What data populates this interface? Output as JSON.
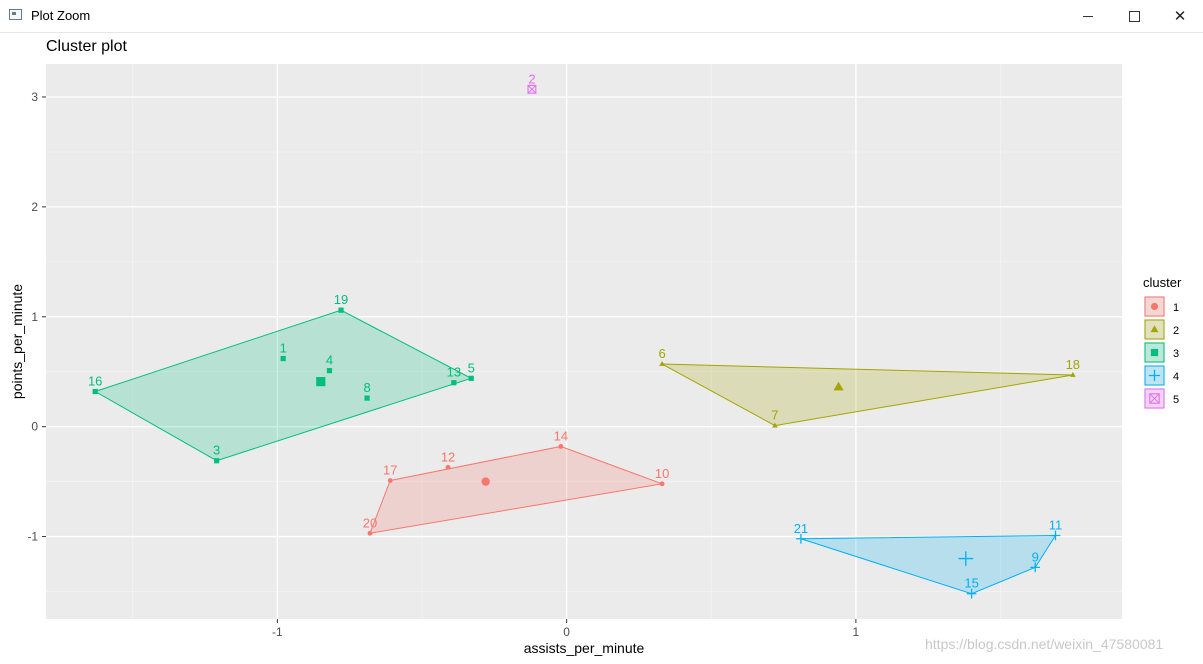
{
  "window": {
    "title": "Plot Zoom",
    "minimize_glyph": "minimize-icon",
    "maximize_glyph": "maximize-icon",
    "close_glyph": "✕"
  },
  "watermark": "https://blog.csdn.net/weixin_47580081",
  "chart_data": {
    "type": "scatter",
    "title": "Cluster plot",
    "xlabel": "assists_per_minute",
    "ylabel": "points_per_minute",
    "xlim": [
      -1.8,
      1.92
    ],
    "ylim": [
      -1.75,
      3.3
    ],
    "xticks": [
      -1,
      0,
      1
    ],
    "yticks": [
      -1,
      0,
      1,
      2,
      3
    ],
    "xtick_labels": [
      "-1",
      "0",
      "1"
    ],
    "ytick_labels": [
      "-1",
      "0",
      "1",
      "2",
      "3"
    ],
    "grid": true,
    "legend_title": "cluster",
    "legend_position": "right",
    "clusters": [
      {
        "id": "1",
        "color": "#F8766D",
        "shape": "circle",
        "center": [
          -0.28,
          -0.5
        ],
        "hull": [
          "17",
          "14",
          "10",
          "20"
        ],
        "points": [
          {
            "label": "17",
            "x": -0.61,
            "y": -0.49
          },
          {
            "label": "12",
            "x": -0.41,
            "y": -0.37
          },
          {
            "label": "14",
            "x": -0.02,
            "y": -0.18
          },
          {
            "label": "10",
            "x": 0.33,
            "y": -0.52
          },
          {
            "label": "20",
            "x": -0.68,
            "y": -0.97
          }
        ]
      },
      {
        "id": "2",
        "color": "#A3A500",
        "shape": "triangle",
        "center": [
          0.94,
          0.36
        ],
        "hull": [
          "6",
          "18",
          "7"
        ],
        "points": [
          {
            "label": "6",
            "x": 0.33,
            "y": 0.57
          },
          {
            "label": "18",
            "x": 1.75,
            "y": 0.47
          },
          {
            "label": "7",
            "x": 0.72,
            "y": 0.01
          }
        ]
      },
      {
        "id": "3",
        "color": "#00BF7D",
        "shape": "square",
        "center": [
          -0.85,
          0.41
        ],
        "hull": [
          "16",
          "19",
          "5",
          "3"
        ],
        "points": [
          {
            "label": "19",
            "x": -0.78,
            "y": 1.06
          },
          {
            "label": "1",
            "x": -0.98,
            "y": 0.62
          },
          {
            "label": "4",
            "x": -0.82,
            "y": 0.51
          },
          {
            "label": "8",
            "x": -0.69,
            "y": 0.26
          },
          {
            "label": "13",
            "x": -0.39,
            "y": 0.4
          },
          {
            "label": "5",
            "x": -0.33,
            "y": 0.44
          },
          {
            "label": "16",
            "x": -1.63,
            "y": 0.32
          },
          {
            "label": "3",
            "x": -1.21,
            "y": -0.31
          }
        ]
      },
      {
        "id": "4",
        "color": "#00B0F6",
        "shape": "plus",
        "center": [
          1.38,
          -1.2
        ],
        "hull": [
          "21",
          "11",
          "9",
          "15"
        ],
        "points": [
          {
            "label": "21",
            "x": 0.81,
            "y": -1.02
          },
          {
            "label": "11",
            "x": 1.69,
            "y": -0.99
          },
          {
            "label": "9",
            "x": 1.62,
            "y": -1.28
          },
          {
            "label": "15",
            "x": 1.4,
            "y": -1.52
          }
        ]
      },
      {
        "id": "5",
        "color": "#E76BF3",
        "shape": "square-cross",
        "center": [
          -0.12,
          3.07
        ],
        "hull": [],
        "points": [
          {
            "label": "2",
            "x": -0.12,
            "y": 3.07
          }
        ]
      }
    ]
  }
}
